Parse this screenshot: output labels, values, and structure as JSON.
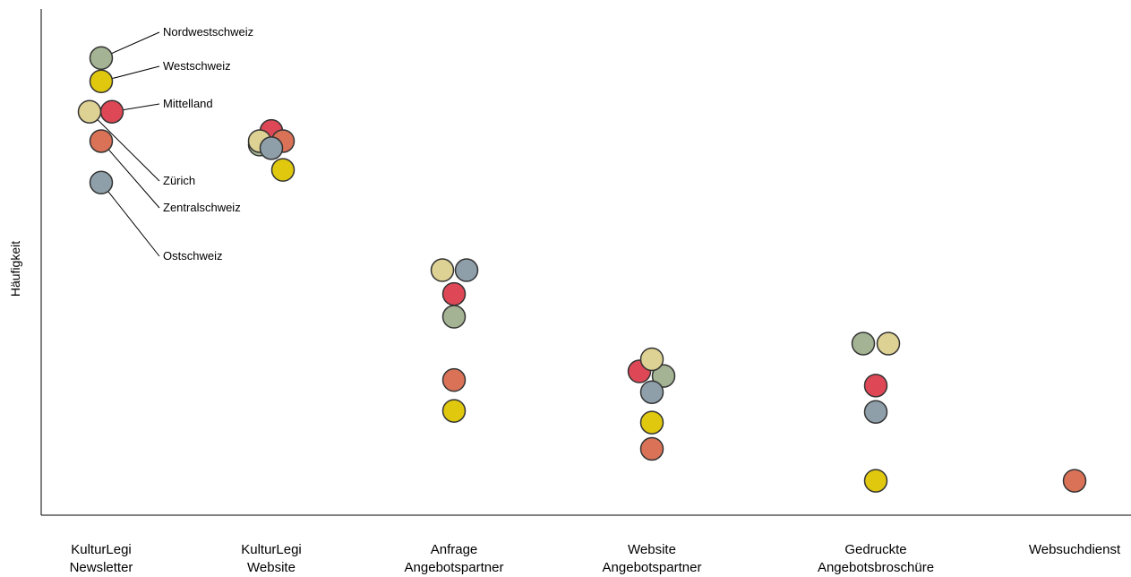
{
  "chart_data": {
    "type": "scatter",
    "title": "",
    "xlabel": "",
    "ylabel": "Häufigkeit",
    "categories": [
      [
        "KulturLegi",
        "Newsletter"
      ],
      [
        "KulturLegi",
        "Website"
      ],
      [
        "Anfrage",
        "Angebotspartner"
      ],
      [
        "Website",
        "Angebotspartner"
      ],
      [
        "Gedruckte",
        "Angebotsbroschüre"
      ],
      [
        "Websuchdienst"
      ]
    ],
    "ylim": [
      0,
      100
    ],
    "grid": false,
    "legend": "direct annotations on first category",
    "colors": {
      "Nordwestschweiz": "#a3b393",
      "Westschweiz": "#dfc80e",
      "Mittelland": "#de4756",
      "Zürich": "#ddd193",
      "Zentralschweiz": "#d97257",
      "Ostschweiz": "#8e9fa9"
    },
    "series": [
      {
        "name": "Nordwestschweiz",
        "values": [
          90.3,
          73.2,
          39.2,
          27.5,
          33.9,
          null
        ]
      },
      {
        "name": "Westschweiz",
        "values": [
          85.7,
          68.2,
          20.6,
          18.3,
          6.8,
          null
        ]
      },
      {
        "name": "Mittelland",
        "values": [
          79.7,
          75.9,
          43.7,
          28.4,
          25.6,
          null
        ]
      },
      {
        "name": "Zürich",
        "values": [
          79.7,
          73.9,
          48.4,
          30.8,
          33.9,
          null
        ]
      },
      {
        "name": "Zentralschweiz",
        "values": [
          73.9,
          73.9,
          26.7,
          13.1,
          null,
          6.8
        ]
      },
      {
        "name": "Ostschweiz",
        "values": [
          65.7,
          72.5,
          48.4,
          24.3,
          20.4,
          null
        ]
      }
    ],
    "annotations": [
      "Nordwestschweiz",
      "Westschweiz",
      "Mittelland",
      "Zürich",
      "Zentralschweiz",
      "Ostschweiz"
    ]
  }
}
